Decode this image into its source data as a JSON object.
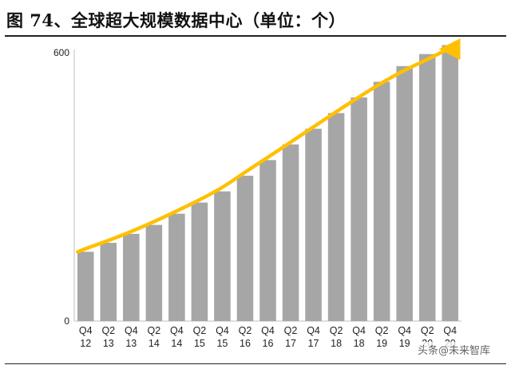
{
  "title": "图 74、全球超大规模数据中心（单位：个）",
  "watermark": "头条@未来智库",
  "colors": {
    "bar": "#a6a6a6",
    "trend": "#ffc000",
    "axis": "#bfbfbf",
    "text": "#222222"
  },
  "chart_data": {
    "type": "bar",
    "title": "图 74、全球超大规模数据中心（单位：个）",
    "categories": [
      "Q4 12",
      "Q2 13",
      "Q4 13",
      "Q2 14",
      "Q4 14",
      "Q2 15",
      "Q4 15",
      "Q2 16",
      "Q4 16",
      "Q2 17",
      "Q4 17",
      "Q2 18",
      "Q4 18",
      "Q2 19",
      "Q4 19",
      "Q2 20",
      "Q4 20"
    ],
    "category_lines": [
      [
        "Q4",
        "12"
      ],
      [
        "Q2",
        "13"
      ],
      [
        "Q4",
        "13"
      ],
      [
        "Q2",
        "14"
      ],
      [
        "Q4",
        "14"
      ],
      [
        "Q2",
        "15"
      ],
      [
        "Q4",
        "15"
      ],
      [
        "Q2",
        "16"
      ],
      [
        "Q4",
        "16"
      ],
      [
        "Q2",
        "17"
      ],
      [
        "Q4",
        "17"
      ],
      [
        "Q2",
        "18"
      ],
      [
        "Q4",
        "18"
      ],
      [
        "Q2",
        "19"
      ],
      [
        "Q4",
        "19"
      ],
      [
        "Q2",
        "20"
      ],
      [
        "Q4",
        "20"
      ]
    ],
    "values": [
      155,
      175,
      195,
      215,
      240,
      265,
      290,
      325,
      360,
      395,
      430,
      465,
      500,
      535,
      570,
      597,
      617
    ],
    "trend_values": [
      162,
      180,
      200,
      222,
      246,
      271,
      298,
      333,
      366,
      400,
      434,
      468,
      501,
      533,
      561,
      585,
      608
    ],
    "xlabel": "",
    "ylabel": "",
    "ylim": [
      0,
      600
    ],
    "yticks": [
      0,
      600
    ],
    "grid": false,
    "legend": "none"
  }
}
